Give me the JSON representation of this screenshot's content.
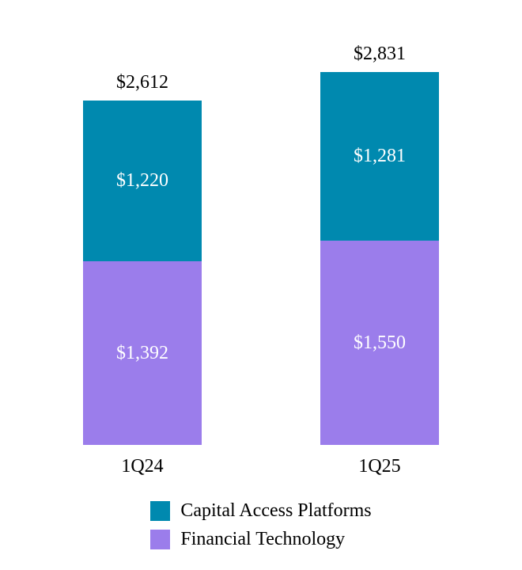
{
  "colors": {
    "capital_access_platforms": "#0089AF",
    "financial_technology": "#9B7DEB",
    "background": "#FFFFFF",
    "total_label_text": "#000000",
    "segment_label_text": "#FFFFFF"
  },
  "chart_data": {
    "type": "bar",
    "stacked": true,
    "grid": false,
    "legend_position": "bottom",
    "categories": [
      "1Q24",
      "1Q25"
    ],
    "series": [
      {
        "name": "Financial Technology",
        "color": "#9B7DEB",
        "values": [
          1392,
          1550
        ],
        "labels": [
          "$1,392",
          "$1,550"
        ]
      },
      {
        "name": "Capital Access Platforms",
        "color": "#0089AF",
        "values": [
          1220,
          1281
        ],
        "labels": [
          "$1,220",
          "$1,281"
        ]
      }
    ],
    "totals": [
      2612,
      2831
    ],
    "total_labels": [
      "$2,612",
      "$2,831"
    ],
    "value_axis_visible": false,
    "approx_value_range": [
      0,
      2831
    ],
    "legend": [
      {
        "label": "Capital Access Platforms",
        "color": "#0089AF"
      },
      {
        "label": "Financial Technology",
        "color": "#9B7DEB"
      }
    ]
  }
}
